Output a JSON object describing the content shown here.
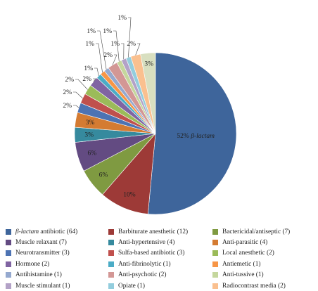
{
  "chart_data": {
    "type": "pie",
    "title": "",
    "slices": [
      {
        "label": "β-lactam antibiotic (64)",
        "value": 52,
        "display": "52% β-lactam",
        "color": "#3e659b"
      },
      {
        "label": "Barbiturate anesthetic (12)",
        "value": 10,
        "display": "10%",
        "color": "#9d3a37"
      },
      {
        "label": "Bactericidal/antiseptic (7)",
        "value": 6,
        "display": "6%",
        "color": "#7f9a41"
      },
      {
        "label": "Muscle relaxant (7)",
        "value": 6,
        "display": "6%",
        "color": "#634b82"
      },
      {
        "label": "Anti-hypertensive (4)",
        "value": 3,
        "display": "3%",
        "color": "#368a9e"
      },
      {
        "label": "Anti-parasitic (4)",
        "value": 3,
        "display": "3%",
        "color": "#d47b32"
      },
      {
        "label": "Neurotransmitter (3)",
        "value": 2,
        "display": "2%",
        "color": "#4d73b3"
      },
      {
        "label": "Sulfa-based antibiotic (3)",
        "value": 2,
        "display": "2%",
        "color": "#c0504d"
      },
      {
        "label": "Local anesthetic (2)",
        "value": 2,
        "display": "2%",
        "color": "#9bbb59"
      },
      {
        "label": "Hormone (2)",
        "value": 2,
        "display": "2%",
        "color": "#8064a2"
      },
      {
        "label": "Anti-fibrinolytic (1)",
        "value": 1,
        "display": "1%",
        "color": "#4bacc6"
      },
      {
        "label": "Antiemetic (1)",
        "value": 1,
        "display": "1%",
        "color": "#f79646"
      },
      {
        "label": "Antihistamine (1)",
        "value": 1,
        "display": "1%",
        "color": "#95a9cf"
      },
      {
        "label": "Anti-psychotic (2)",
        "value": 2,
        "display": "2%",
        "color": "#d39795"
      },
      {
        "label": "Anti-tussive (1)",
        "value": 1,
        "display": "1%",
        "color": "#c5d79d"
      },
      {
        "label": "Muscle stimulant (1)",
        "value": 1,
        "display": "1%",
        "color": "#b3a2c7"
      },
      {
        "label": "Opiate (1)",
        "value": 1,
        "display": "1%",
        "color": "#93cddd"
      },
      {
        "label": "Radiocontrast media (2)",
        "value": 2,
        "display": "2%",
        "color": "#fac08f"
      },
      {
        "label": "",
        "value": 3,
        "display": "3%",
        "color": "#d8dfc0"
      }
    ],
    "legend": [
      "β-lactam antibiotic (64)",
      "Barbiturate anesthetic (12)",
      "Bactericidal/antiseptic (7)",
      "Muscle relaxant (7)",
      "Anti-hypertensive (4)",
      "Anti-parasitic (4)",
      "Neurotransmitter (3)",
      "Sulfa-based antibiotic (3)",
      "Local anesthetic (2)",
      "Hormone (2)",
      "Anti-fibrinolytic (1)",
      "Antiemetic (1)",
      "Antihistamine (1)",
      "Anti-psychotic (2)",
      "Anti-tussive (1)",
      "Muscle stimulant (1)",
      "Opiate (1)",
      "Radiocontrast media (2)"
    ],
    "legend_placement": "bottom"
  }
}
